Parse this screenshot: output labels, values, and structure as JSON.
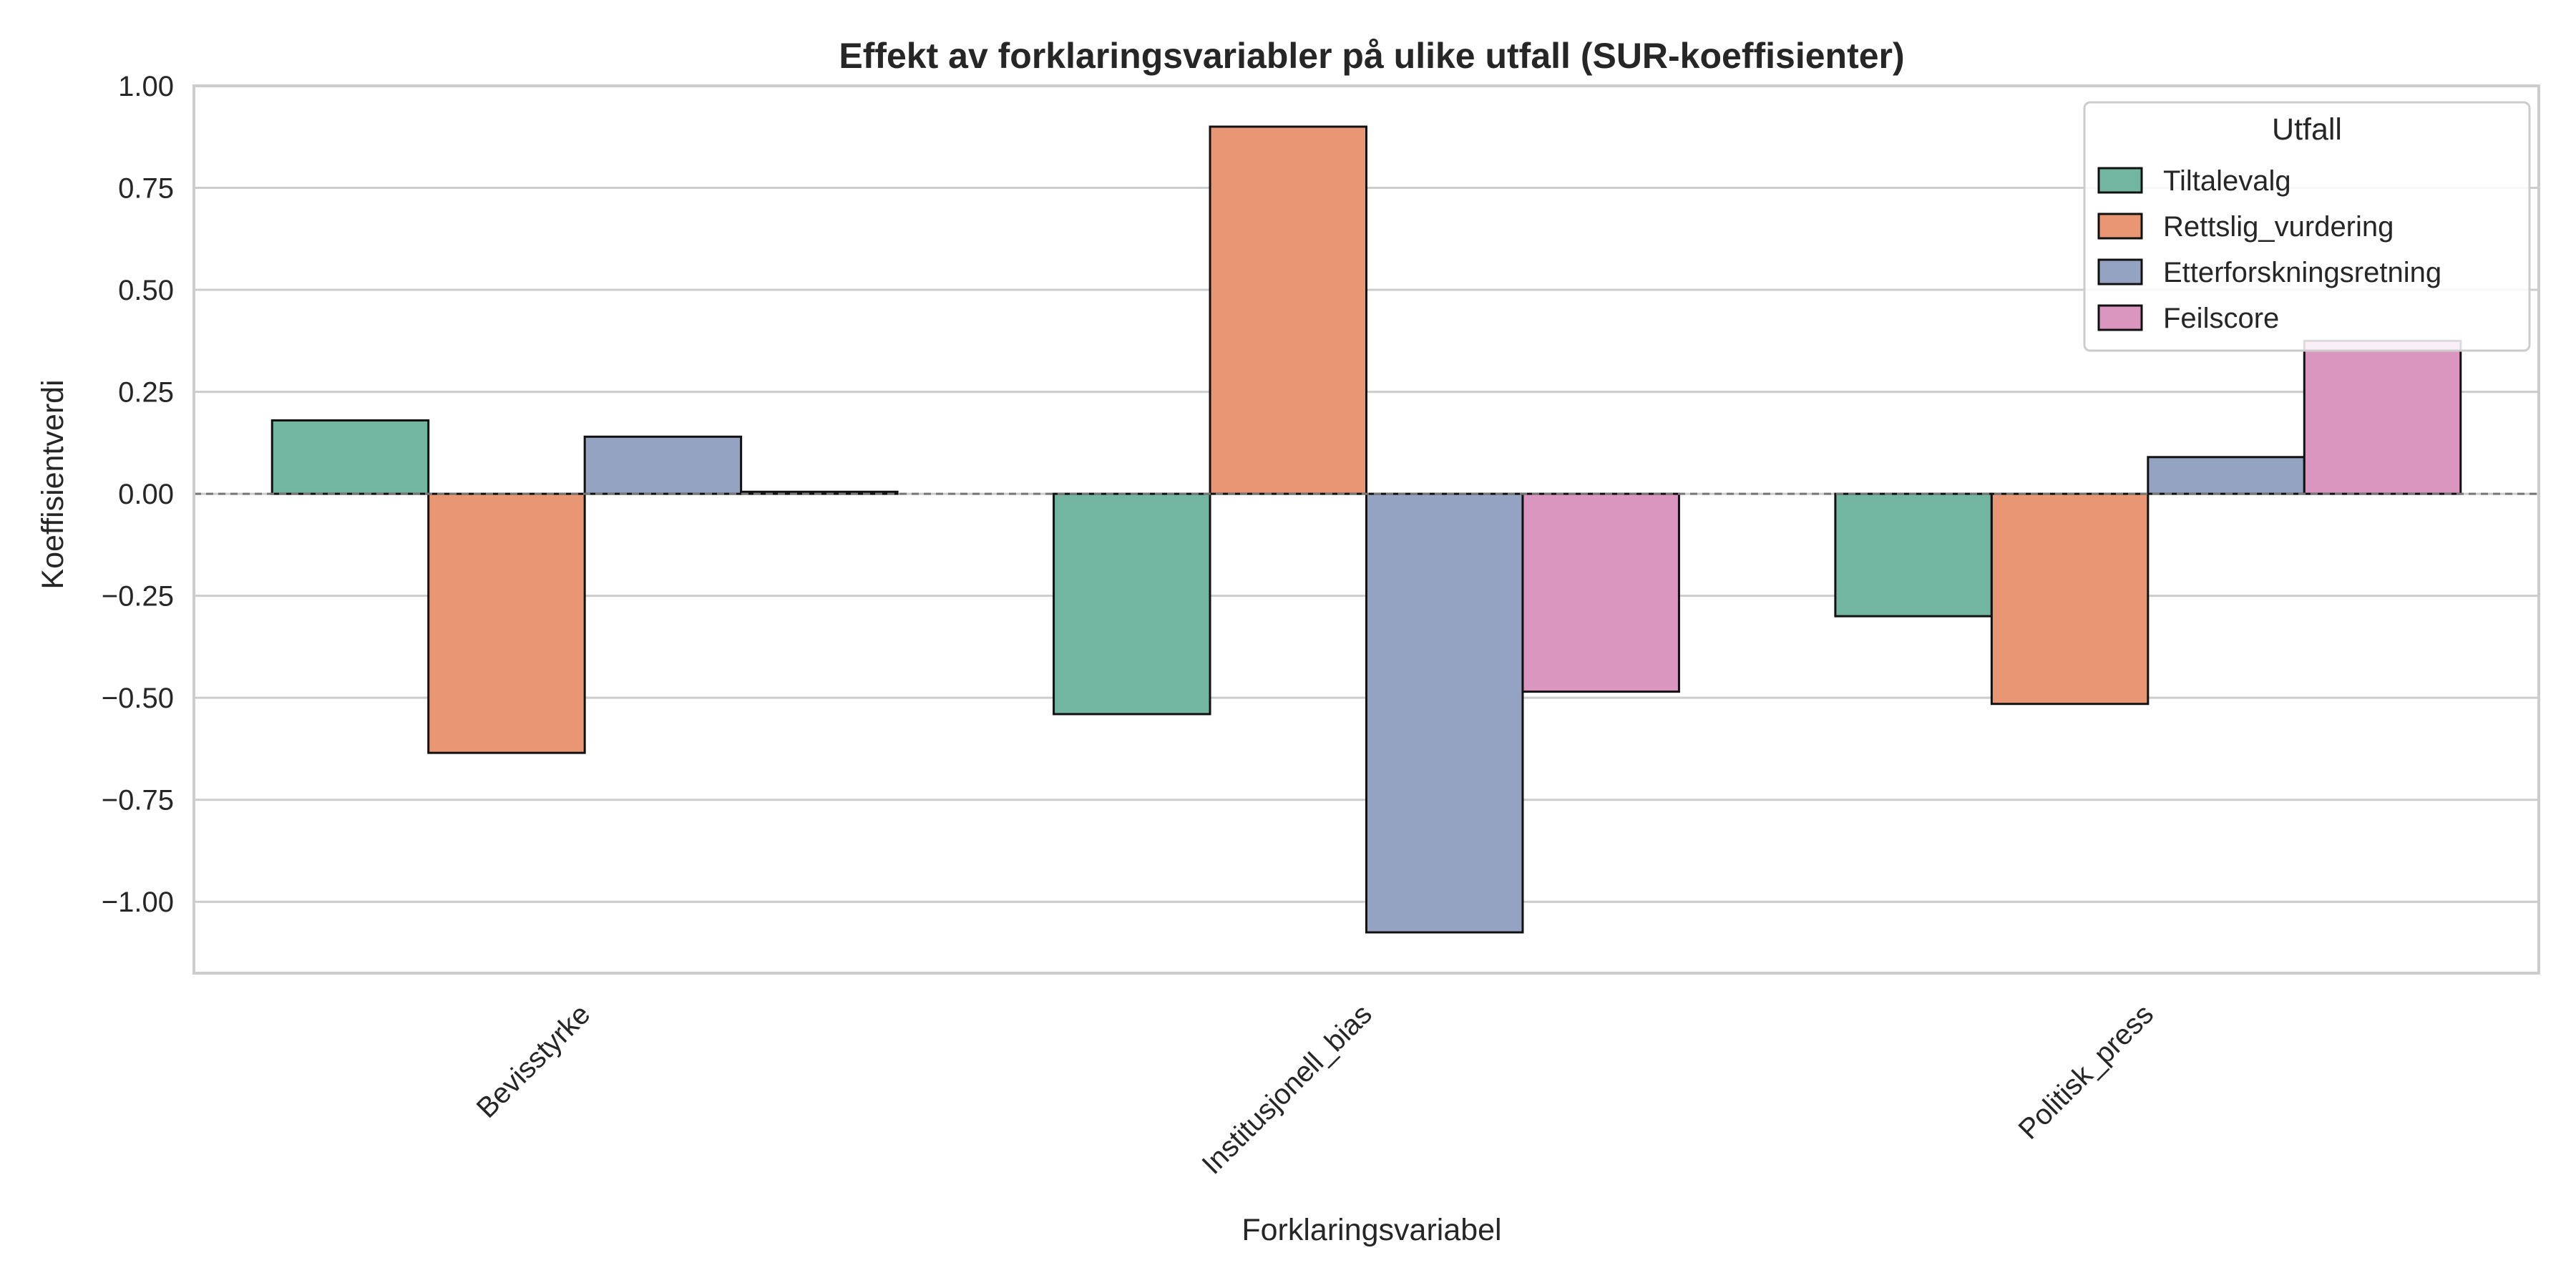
{
  "chart_data": {
    "type": "bar",
    "title": "Effekt av forklaringsvariabler på ulike utfall (SUR-koeffisienter)",
    "xlabel": "Forklaringsvariabel",
    "ylabel": "Koeffisientverdi",
    "categories": [
      "Bevisstyrke",
      "Institusjonell_bias",
      "Politisk_press"
    ],
    "series": [
      {
        "name": "Tiltalevalg",
        "color": "#72b6a1",
        "values": [
          0.18,
          -0.54,
          -0.3
        ]
      },
      {
        "name": "Rettslig_vurdering",
        "color": "#e99675",
        "values": [
          -0.635,
          0.9,
          -0.515
        ]
      },
      {
        "name": "Etterforskningsretning",
        "color": "#95a3c3",
        "values": [
          0.14,
          -1.075,
          0.09
        ]
      },
      {
        "name": "Feilscore",
        "color": "#db96c0",
        "values": [
          0.005,
          -0.485,
          0.375
        ]
      }
    ],
    "ylim": [
      -1.175,
      1.0
    ],
    "yticks": [
      1.0,
      0.75,
      0.5,
      0.25,
      0.0,
      -0.25,
      -0.5,
      -0.75,
      -1.0
    ],
    "ytick_labels": [
      "1.00",
      "0.75",
      "0.50",
      "0.25",
      "0.00",
      "−0.25",
      "−0.50",
      "−0.75",
      "−1.00"
    ],
    "grid": "horizontal",
    "zero_line": "dashed",
    "legend": {
      "title": "Utfall",
      "placement": "top-right"
    }
  }
}
